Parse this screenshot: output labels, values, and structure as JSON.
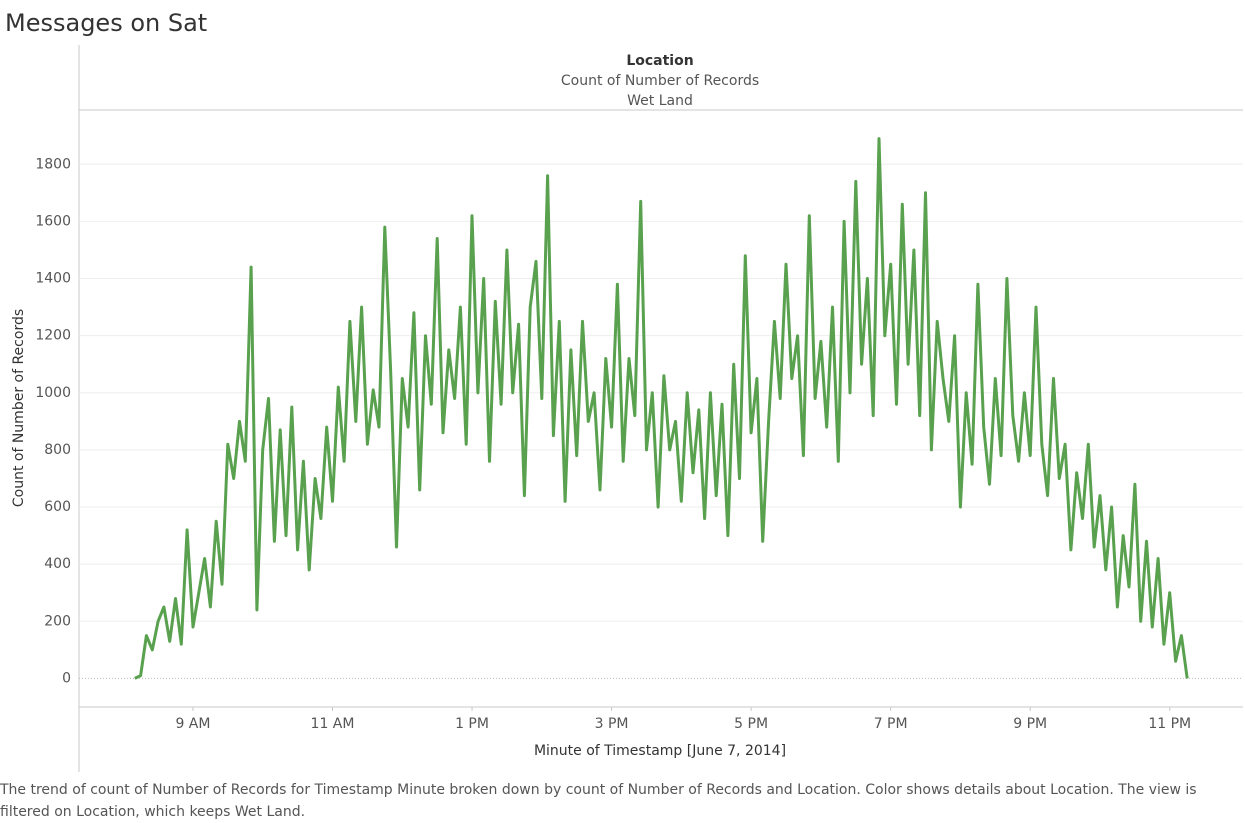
{
  "title": "Messages on Sat",
  "chart_data": {
    "type": "line",
    "header": {
      "title": "Location",
      "subtitle": "Count of Number of Records",
      "facet": "Wet Land"
    },
    "x_label": "Minute of Timestamp [June 7, 2014]",
    "y_label": "Count of Number of Records",
    "x": [
      "08:10",
      "08:15",
      "08:20",
      "08:25",
      "08:30",
      "08:35",
      "08:40",
      "08:45",
      "08:50",
      "08:55",
      "09:00",
      "09:05",
      "09:10",
      "09:15",
      "09:20",
      "09:25",
      "09:30",
      "09:35",
      "09:40",
      "09:45",
      "09:50",
      "09:55",
      "10:00",
      "10:05",
      "10:10",
      "10:15",
      "10:20",
      "10:25",
      "10:30",
      "10:35",
      "10:40",
      "10:45",
      "10:50",
      "10:55",
      "11:00",
      "11:05",
      "11:10",
      "11:15",
      "11:20",
      "11:25",
      "11:30",
      "11:35",
      "11:40",
      "11:45",
      "11:50",
      "11:55",
      "12:00",
      "12:05",
      "12:10",
      "12:15",
      "12:20",
      "12:25",
      "12:30",
      "12:35",
      "12:40",
      "12:45",
      "12:50",
      "12:55",
      "13:00",
      "13:05",
      "13:10",
      "13:15",
      "13:20",
      "13:25",
      "13:30",
      "13:35",
      "13:40",
      "13:45",
      "13:50",
      "13:55",
      "14:00",
      "14:05",
      "14:10",
      "14:15",
      "14:20",
      "14:25",
      "14:30",
      "14:35",
      "14:40",
      "14:45",
      "14:50",
      "14:55",
      "15:00",
      "15:05",
      "15:10",
      "15:15",
      "15:20",
      "15:25",
      "15:30",
      "15:35",
      "15:40",
      "15:45",
      "15:50",
      "15:55",
      "16:00",
      "16:05",
      "16:10",
      "16:15",
      "16:20",
      "16:25",
      "16:30",
      "16:35",
      "16:40",
      "16:45",
      "16:50",
      "16:55",
      "17:00",
      "17:05",
      "17:10",
      "17:15",
      "17:20",
      "17:25",
      "17:30",
      "17:35",
      "17:40",
      "17:45",
      "17:50",
      "17:55",
      "18:00",
      "18:05",
      "18:10",
      "18:15",
      "18:20",
      "18:25",
      "18:30",
      "18:35",
      "18:40",
      "18:45",
      "18:50",
      "18:55",
      "19:00",
      "19:05",
      "19:10",
      "19:15",
      "19:20",
      "19:25",
      "19:30",
      "19:35",
      "19:40",
      "19:45",
      "19:50",
      "19:55",
      "20:00",
      "20:05",
      "20:10",
      "20:15",
      "20:20",
      "20:25",
      "20:30",
      "20:35",
      "20:40",
      "20:45",
      "20:50",
      "20:55",
      "21:00",
      "21:05",
      "21:10",
      "21:15",
      "21:20",
      "21:25",
      "21:30",
      "21:35",
      "21:40",
      "21:45",
      "21:50",
      "21:55",
      "22:00",
      "22:05",
      "22:10",
      "22:15",
      "22:20",
      "22:25",
      "22:30",
      "22:35",
      "22:40",
      "22:45",
      "22:50",
      "22:55",
      "23:00",
      "23:05",
      "23:10",
      "23:15"
    ],
    "series": [
      {
        "name": "Wet Land",
        "color": "#59a14f",
        "values": [
          0,
          10,
          150,
          100,
          200,
          250,
          130,
          280,
          120,
          520,
          180,
          300,
          420,
          250,
          550,
          330,
          820,
          700,
          900,
          760,
          1440,
          240,
          800,
          980,
          480,
          870,
          500,
          950,
          450,
          760,
          380,
          700,
          560,
          880,
          620,
          1020,
          760,
          1250,
          900,
          1300,
          820,
          1010,
          880,
          1580,
          1080,
          460,
          1050,
          880,
          1280,
          660,
          1200,
          960,
          1540,
          860,
          1150,
          980,
          1300,
          820,
          1620,
          1000,
          1400,
          760,
          1320,
          960,
          1500,
          1000,
          1240,
          640,
          1300,
          1460,
          980,
          1760,
          850,
          1250,
          620,
          1150,
          780,
          1250,
          900,
          1000,
          660,
          1120,
          880,
          1380,
          760,
          1120,
          920,
          1670,
          800,
          1000,
          600,
          1060,
          800,
          900,
          620,
          1000,
          720,
          940,
          560,
          1000,
          640,
          960,
          500,
          1100,
          700,
          1480,
          860,
          1050,
          480,
          900,
          1250,
          980,
          1450,
          1050,
          1200,
          780,
          1620,
          980,
          1180,
          880,
          1300,
          760,
          1600,
          1000,
          1740,
          1100,
          1400,
          920,
          1890,
          1200,
          1450,
          960,
          1660,
          1100,
          1500,
          920,
          1700,
          800,
          1250,
          1050,
          900,
          1200,
          600,
          1000,
          750,
          1380,
          880,
          680,
          1050,
          780,
          1400,
          920,
          760,
          1000,
          780,
          1300,
          820,
          640,
          1050,
          700,
          820,
          450,
          720,
          560,
          820,
          460,
          640,
          380,
          600,
          250,
          500,
          320,
          680,
          200,
          480,
          180,
          420,
          120,
          300,
          60,
          150,
          0
        ]
      }
    ],
    "xlim": [
      "07:22",
      "24:03"
    ],
    "xticks": [
      {
        "value": "09:00",
        "label": "9 AM"
      },
      {
        "value": "11:00",
        "label": "11 AM"
      },
      {
        "value": "13:00",
        "label": "1 PM"
      },
      {
        "value": "15:00",
        "label": "3 PM"
      },
      {
        "value": "17:00",
        "label": "5 PM"
      },
      {
        "value": "19:00",
        "label": "7 PM"
      },
      {
        "value": "21:00",
        "label": "9 PM"
      },
      {
        "value": "23:00",
        "label": "11 PM"
      }
    ],
    "ylim": [
      -100,
      1990
    ],
    "yticks": [
      0,
      200,
      400,
      600,
      800,
      1000,
      1200,
      1400,
      1600,
      1800
    ],
    "grid": true
  },
  "caption": "The trend of count of Number of Records for Timestamp Minute broken down by count of Number of Records and Location.  Color shows details about Location. The view is filtered on Location, which keeps Wet Land."
}
